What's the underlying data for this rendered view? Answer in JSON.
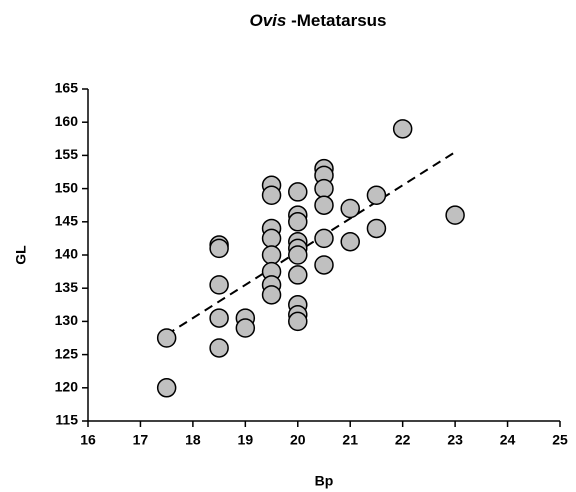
{
  "chart_data": {
    "type": "scatter",
    "title": [
      "Ovis",
      "-Metatarsus"
    ],
    "xlabel": "Bp",
    "ylabel": "GL",
    "xlim": [
      16,
      25
    ],
    "xticks": [
      16,
      17,
      18,
      19,
      20,
      21,
      22,
      23,
      24,
      25
    ],
    "ylim": [
      115,
      165
    ],
    "yticks": [
      115,
      120,
      125,
      130,
      135,
      140,
      145,
      150,
      155,
      160,
      165
    ],
    "color": "#c0c0c0",
    "x": [
      17.5,
      17.5,
      18.5,
      18.5,
      18.5,
      18.5,
      18.5,
      19,
      19,
      19.5,
      19.5,
      19.5,
      19.5,
      19.5,
      19.5,
      19.5,
      19.5,
      20,
      20,
      20,
      20,
      20,
      20,
      20,
      20,
      20,
      20,
      20.5,
      20.5,
      20.5,
      20.5,
      20.5,
      20.5,
      21,
      21,
      21.5,
      21.5,
      22,
      23
    ],
    "values": [
      127.5,
      120,
      141.5,
      141,
      135.5,
      130.5,
      126,
      130.5,
      129,
      150.5,
      149,
      144,
      142.5,
      140,
      137.5,
      135.5,
      134,
      149.5,
      146,
      145,
      142,
      141,
      140,
      137,
      132.5,
      131,
      130,
      153,
      152,
      150,
      147.5,
      142.5,
      138.5,
      147,
      142,
      149,
      144,
      159,
      146
    ],
    "trendline": {
      "x": [
        17.5,
        23
      ],
      "y": [
        128,
        155.5
      ]
    }
  }
}
